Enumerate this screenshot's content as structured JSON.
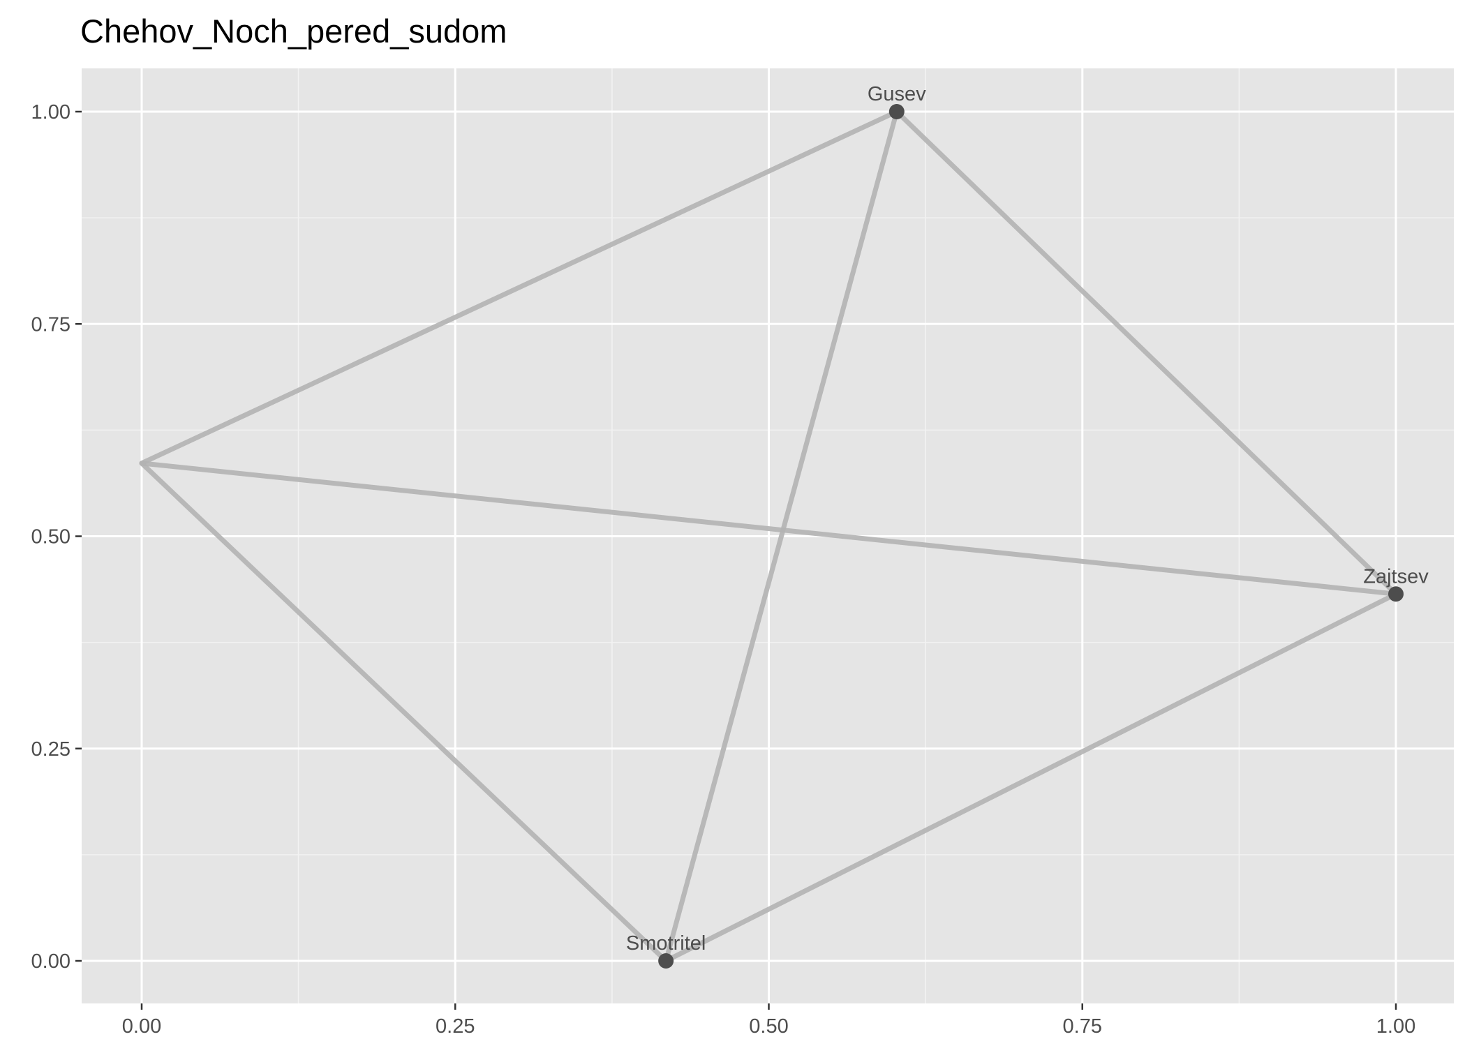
{
  "title": "Chehov_Noch_pered_sudom",
  "colors": {
    "panel_bg": "#e5e5e5",
    "grid_major": "#ffffff",
    "grid_minor": "#f2f2f2",
    "edge": "#b3b3b3",
    "node": "#4d4d4d",
    "text": "#4d4d4d",
    "title": "#000000"
  },
  "chart_data": {
    "type": "scatter",
    "title": "Chehov_Noch_pered_sudom",
    "xlabel": "",
    "ylabel": "",
    "xlim": [
      -0.05,
      1.05
    ],
    "ylim": [
      -0.05,
      1.05
    ],
    "x_ticks": [
      "0.00",
      "0.25",
      "0.50",
      "0.75",
      "1.00"
    ],
    "y_ticks": [
      "0.00",
      "0.25",
      "0.50",
      "0.75",
      "1.00"
    ],
    "x_tick_values": [
      0,
      0.25,
      0.5,
      0.75,
      1.0
    ],
    "y_tick_values": [
      0,
      0.25,
      0.5,
      0.75,
      1.0
    ],
    "grid": true,
    "nodes": [
      {
        "name": "Gusev",
        "x": 0.602,
        "y": 1.0,
        "label": "Gusev"
      },
      {
        "name": "Zajtsev",
        "x": 1.0,
        "y": 0.432,
        "label": "Zajtsev"
      },
      {
        "name": "Smotritel",
        "x": 0.418,
        "y": 0.0,
        "label": "Smotritel"
      },
      {
        "name": "unlabeled",
        "x": 0.0,
        "y": 0.586,
        "label": ""
      }
    ],
    "edges": [
      [
        "unlabeled",
        "Gusev"
      ],
      [
        "unlabeled",
        "Zajtsev"
      ],
      [
        "unlabeled",
        "Smotritel"
      ],
      [
        "Gusev",
        "Zajtsev"
      ],
      [
        "Gusev",
        "Smotritel"
      ],
      [
        "Smotritel",
        "Zajtsev"
      ]
    ]
  }
}
